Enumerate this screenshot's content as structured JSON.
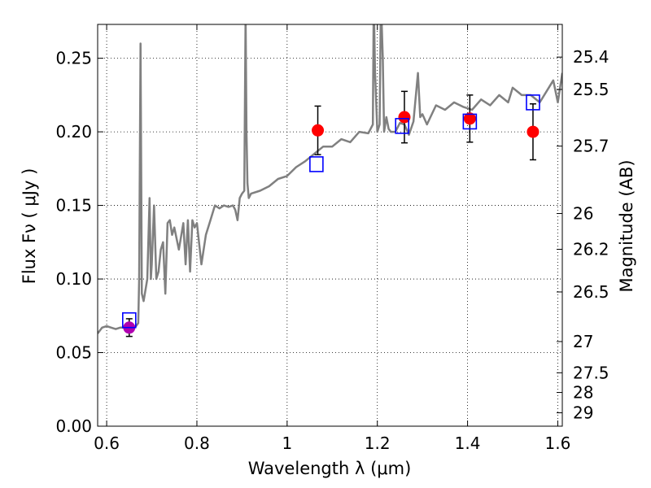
{
  "chart_data": {
    "type": "scatter",
    "xlabel": "Wavelength  λ (μm)",
    "ylabel": "Flux  Fν  ( μJy )",
    "y2label": "Magnitude (AB)",
    "xlim": [
      0.58,
      1.61
    ],
    "ylim": [
      0.0,
      0.273
    ],
    "xticks": [
      0.6,
      0.8,
      1.0,
      1.2,
      1.4,
      1.6
    ],
    "xtick_labels": [
      "0.6",
      "0.8",
      "1",
      "1.2",
      "1.4",
      "1.6"
    ],
    "yticks": [
      0.0,
      0.05,
      0.1,
      0.15,
      0.2,
      0.25
    ],
    "ytick_labels": [
      "0.00",
      "0.05",
      "0.10",
      "0.15",
      "0.20",
      "0.25"
    ],
    "mag_ticks": [
      {
        "label": "25.4",
        "flux": 0.2508
      },
      {
        "label": "25.5",
        "flux": 0.2288
      },
      {
        "label": "25.7",
        "flux": 0.1903
      },
      {
        "label": "26",
        "flux": 0.1445
      },
      {
        "label": "26.2",
        "flux": 0.1202
      },
      {
        "label": "26.5",
        "flux": 0.0912
      },
      {
        "label": "27",
        "flux": 0.0575
      },
      {
        "label": "27.5",
        "flux": 0.0363
      },
      {
        "label": "28",
        "flux": 0.0229
      },
      {
        "label": "29",
        "flux": 0.0091
      }
    ],
    "grid": true,
    "colors": {
      "model": "#808080",
      "obs": "#ff0000",
      "obs_optical": "#b000b0",
      "synthetic": "#0000ff",
      "errorbar": "#000000"
    },
    "model_spectrum": {
      "x": [
        0.58,
        0.59,
        0.6,
        0.61,
        0.62,
        0.63,
        0.64,
        0.65,
        0.66,
        0.665,
        0.67,
        0.672,
        0.675,
        0.678,
        0.682,
        0.69,
        0.695,
        0.698,
        0.7,
        0.705,
        0.71,
        0.715,
        0.72,
        0.725,
        0.73,
        0.735,
        0.74,
        0.745,
        0.75,
        0.76,
        0.77,
        0.775,
        0.78,
        0.785,
        0.79,
        0.795,
        0.8,
        0.81,
        0.82,
        0.83,
        0.84,
        0.85,
        0.86,
        0.87,
        0.88,
        0.885,
        0.89,
        0.895,
        0.9,
        0.905,
        0.908,
        0.91,
        0.912,
        0.915,
        0.92,
        0.94,
        0.96,
        0.98,
        1.0,
        1.02,
        1.04,
        1.06,
        1.08,
        1.1,
        1.12,
        1.14,
        1.16,
        1.18,
        1.19,
        1.192,
        1.195,
        1.2,
        1.205,
        1.208,
        1.212,
        1.215,
        1.22,
        1.225,
        1.23,
        1.24,
        1.25,
        1.26,
        1.27,
        1.28,
        1.29,
        1.295,
        1.3,
        1.31,
        1.33,
        1.35,
        1.37,
        1.39,
        1.41,
        1.43,
        1.45,
        1.47,
        1.49,
        1.5,
        1.52,
        1.54,
        1.56,
        1.58,
        1.59,
        1.6,
        1.61
      ],
      "y": [
        0.063,
        0.067,
        0.068,
        0.067,
        0.066,
        0.067,
        0.067,
        0.068,
        0.067,
        0.068,
        0.07,
        0.1,
        0.26,
        0.09,
        0.085,
        0.1,
        0.155,
        0.1,
        0.11,
        0.15,
        0.1,
        0.105,
        0.12,
        0.125,
        0.09,
        0.138,
        0.14,
        0.13,
        0.135,
        0.12,
        0.138,
        0.11,
        0.14,
        0.105,
        0.14,
        0.135,
        0.138,
        0.11,
        0.13,
        0.14,
        0.15,
        0.148,
        0.15,
        0.149,
        0.15,
        0.147,
        0.14,
        0.155,
        0.158,
        0.16,
        0.28,
        0.2,
        0.165,
        0.155,
        0.158,
        0.16,
        0.163,
        0.168,
        0.17,
        0.176,
        0.18,
        0.185,
        0.19,
        0.19,
        0.195,
        0.193,
        0.2,
        0.199,
        0.205,
        0.29,
        0.24,
        0.2,
        0.205,
        0.29,
        0.25,
        0.2,
        0.21,
        0.202,
        0.2,
        0.2,
        0.206,
        0.205,
        0.198,
        0.207,
        0.24,
        0.21,
        0.212,
        0.205,
        0.218,
        0.215,
        0.22,
        0.217,
        0.215,
        0.222,
        0.218,
        0.225,
        0.22,
        0.23,
        0.225,
        0.225,
        0.22,
        0.23,
        0.235,
        0.22,
        0.24
      ]
    },
    "observed": [
      {
        "x": 0.65,
        "y": 0.067,
        "err": 0.006,
        "color": "#b000b0"
      },
      {
        "x": 1.068,
        "y": 0.201,
        "err": 0.0165,
        "color": "#ff0000"
      },
      {
        "x": 1.26,
        "y": 0.21,
        "err": 0.0175,
        "color": "#ff0000"
      },
      {
        "x": 1.405,
        "y": 0.209,
        "err": 0.016,
        "color": "#ff0000"
      },
      {
        "x": 1.545,
        "y": 0.2,
        "err": 0.019,
        "color": "#ff0000"
      }
    ],
    "synthetic_photometry": [
      {
        "x": 0.65,
        "y": 0.072
      },
      {
        "x": 1.065,
        "y": 0.178
      },
      {
        "x": 1.255,
        "y": 0.204
      },
      {
        "x": 1.405,
        "y": 0.207
      },
      {
        "x": 1.545,
        "y": 0.22
      }
    ]
  }
}
